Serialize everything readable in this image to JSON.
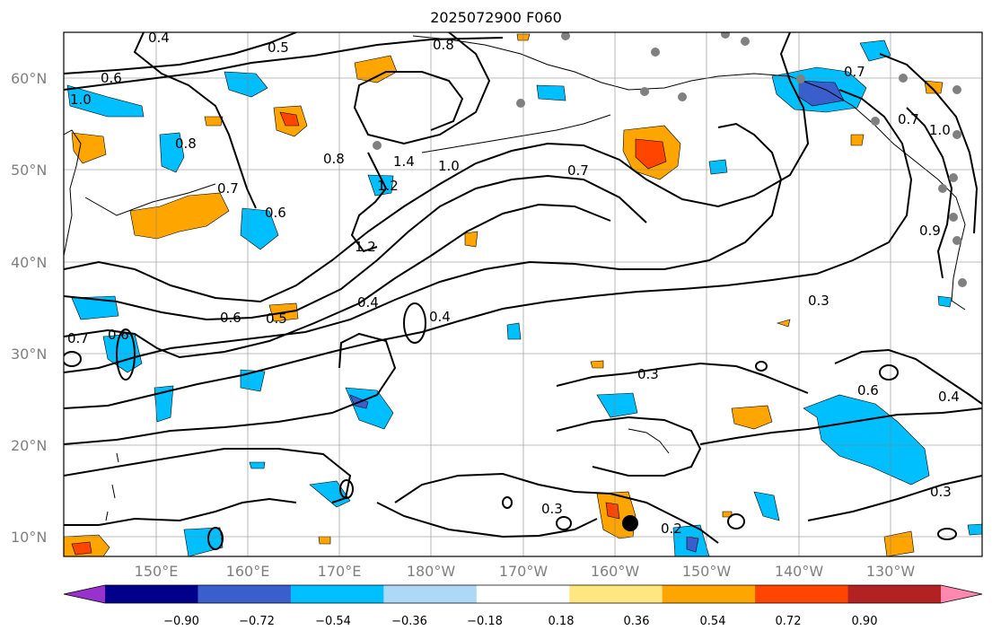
{
  "title": "2025072900 F060",
  "lat_labels": [
    "60°N",
    "50°N",
    "40°N",
    "30°N",
    "20°N",
    "10°N"
  ],
  "lon_labels": [
    "150°E",
    "160°E",
    "170°E",
    "180°W",
    "170°W",
    "160°W",
    "150°W",
    "140°W",
    "130°W"
  ],
  "contour_labels": [
    "0.4",
    "0.8",
    "0.6",
    "0.5",
    "0.7",
    "1.0",
    "0.7",
    "0.8",
    "1.4",
    "1.0",
    "0.7",
    "0.8",
    "1.2",
    "1.0",
    "0.6",
    "0.9",
    "1.2",
    "0.7",
    "0.6",
    "0.5",
    "0.4",
    "0.4",
    "0.3",
    "0.7",
    "0.6",
    "0.3",
    "0.6",
    "0.4",
    "0.3",
    "0.3",
    "0.2"
  ],
  "colorbar": {
    "ticks": [
      "−0.90",
      "−0.72",
      "−0.54",
      "−0.36",
      "−0.18",
      "0.18",
      "0.36",
      "0.54",
      "0.72",
      "0.90"
    ],
    "colors": [
      "#9932cc",
      "#00008b",
      "#3a5fcd",
      "#00bfff",
      "#add8f6",
      "#ffffff",
      "#ffe680",
      "#ffa500",
      "#ff4500",
      "#b22222",
      "#ff88b0"
    ]
  }
}
